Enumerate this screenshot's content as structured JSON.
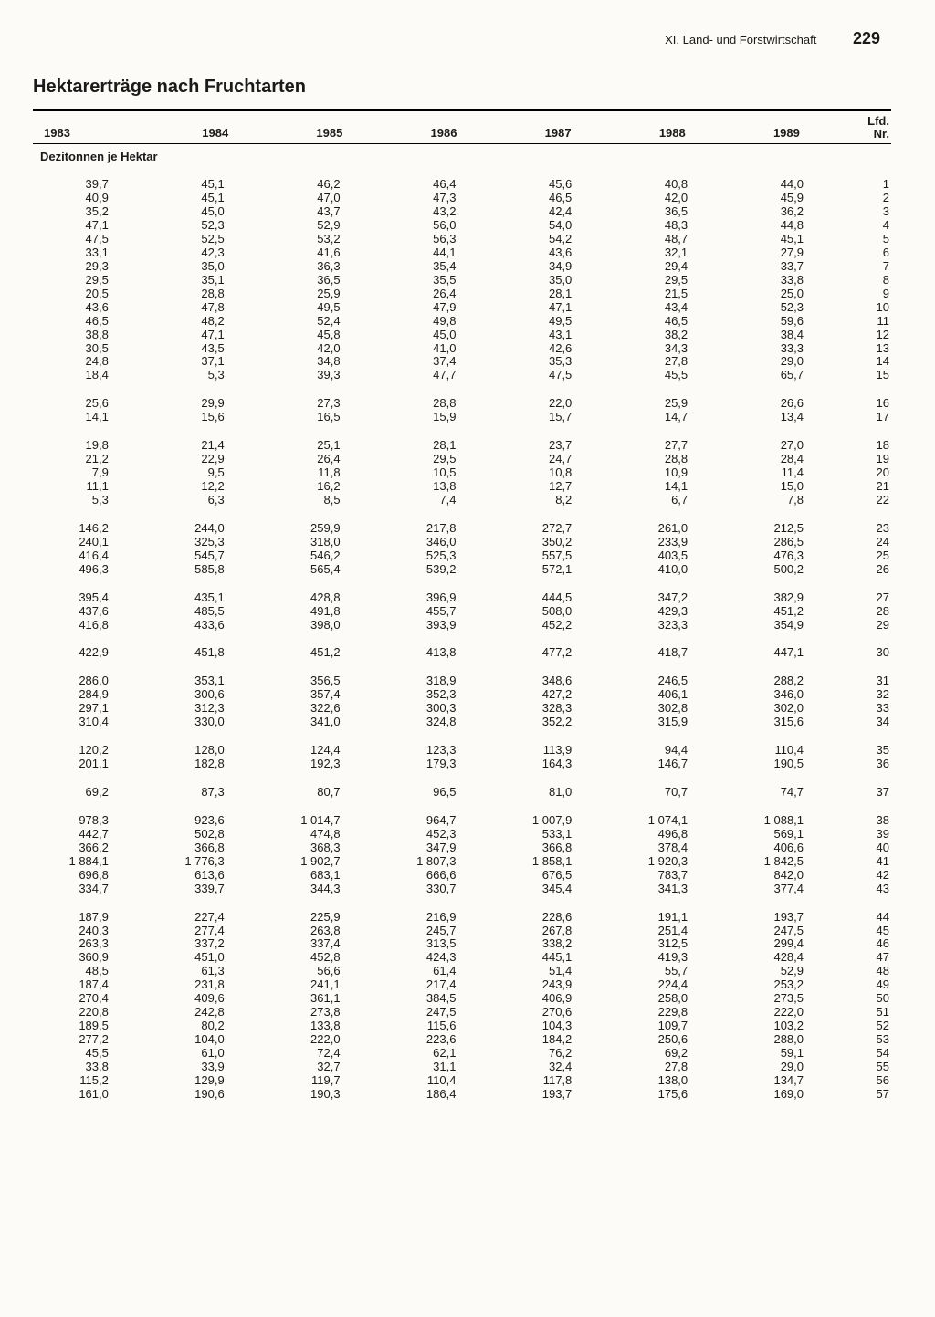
{
  "running_head_section": "XI. Land- und Forstwirtschaft",
  "page_number": "229",
  "title": "Hektarerträge nach Fruchtarten",
  "year_headers": [
    "1983",
    "1984",
    "1985",
    "1986",
    "1987",
    "1988",
    "1989"
  ],
  "lfd_header_top": "Lfd.",
  "lfd_header_bot": "Nr.",
  "subhead": "Dezitonnen je Hektar",
  "blocks": [
    {
      "rows": [
        {
          "c": [
            "39,7",
            "45,1",
            "46,2",
            "46,4",
            "45,6",
            "40,8",
            "44,0"
          ],
          "n": "1"
        },
        {
          "c": [
            "40,9",
            "45,1",
            "47,0",
            "47,3",
            "46,5",
            "42,0",
            "45,9"
          ],
          "n": "2"
        },
        {
          "c": [
            "35,2",
            "45,0",
            "43,7",
            "43,2",
            "42,4",
            "36,5",
            "36,2"
          ],
          "n": "3"
        },
        {
          "c": [
            "47,1",
            "52,3",
            "52,9",
            "56,0",
            "54,0",
            "48,3",
            "44,8"
          ],
          "n": "4"
        },
        {
          "c": [
            "47,5",
            "52,5",
            "53,2",
            "56,3",
            "54,2",
            "48,7",
            "45,1"
          ],
          "n": "5"
        },
        {
          "c": [
            "33,1",
            "42,3",
            "41,6",
            "44,1",
            "43,6",
            "32,1",
            "27,9"
          ],
          "n": "6"
        },
        {
          "c": [
            "29,3",
            "35,0",
            "36,3",
            "35,4",
            "34,9",
            "29,4",
            "33,7"
          ],
          "n": "7"
        },
        {
          "c": [
            "29,5",
            "35,1",
            "36,5",
            "35,5",
            "35,0",
            "29,5",
            "33,8"
          ],
          "n": "8"
        },
        {
          "c": [
            "20,5",
            "28,8",
            "25,9",
            "26,4",
            "28,1",
            "21,5",
            "25,0"
          ],
          "n": "9"
        },
        {
          "c": [
            "43,6",
            "47,8",
            "49,5",
            "47,9",
            "47,1",
            "43,4",
            "52,3"
          ],
          "n": "10"
        },
        {
          "c": [
            "46,5",
            "48,2",
            "52,4",
            "49,8",
            "49,5",
            "46,5",
            "59,6"
          ],
          "n": "11"
        },
        {
          "c": [
            "38,8",
            "47,1",
            "45,8",
            "45,0",
            "43,1",
            "38,2",
            "38,4"
          ],
          "n": "12"
        },
        {
          "c": [
            "30,5",
            "43,5",
            "42,0",
            "41,0",
            "42,6",
            "34,3",
            "33,3"
          ],
          "n": "13"
        },
        {
          "c": [
            "24,8",
            "37,1",
            "34,8",
            "37,4",
            "35,3",
            "27,8",
            "29,0"
          ],
          "n": "14"
        },
        {
          "c": [
            "18,4",
            "5,3",
            "39,3",
            "47,7",
            "47,5",
            "45,5",
            "65,7"
          ],
          "n": "15"
        }
      ]
    },
    {
      "rows": [
        {
          "c": [
            "25,6",
            "29,9",
            "27,3",
            "28,8",
            "22,0",
            "25,9",
            "26,6"
          ],
          "n": "16"
        },
        {
          "c": [
            "14,1",
            "15,6",
            "16,5",
            "15,9",
            "15,7",
            "14,7",
            "13,4"
          ],
          "n": "17"
        }
      ]
    },
    {
      "rows": [
        {
          "c": [
            "19,8",
            "21,4",
            "25,1",
            "28,1",
            "23,7",
            "27,7",
            "27,0"
          ],
          "n": "18"
        },
        {
          "c": [
            "21,2",
            "22,9",
            "26,4",
            "29,5",
            "24,7",
            "28,8",
            "28,4"
          ],
          "n": "19"
        },
        {
          "c": [
            "7,9",
            "9,5",
            "11,8",
            "10,5",
            "10,8",
            "10,9",
            "11,4"
          ],
          "n": "20"
        },
        {
          "c": [
            "11,1",
            "12,2",
            "16,2",
            "13,8",
            "12,7",
            "14,1",
            "15,0"
          ],
          "n": "21"
        },
        {
          "c": [
            "5,3",
            "6,3",
            "8,5",
            "7,4",
            "8,2",
            "6,7",
            "7,8"
          ],
          "n": "22"
        }
      ]
    },
    {
      "rows": [
        {
          "c": [
            "146,2",
            "244,0",
            "259,9",
            "217,8",
            "272,7",
            "261,0",
            "212,5"
          ],
          "n": "23"
        },
        {
          "c": [
            "240,1",
            "325,3",
            "318,0",
            "346,0",
            "350,2",
            "233,9",
            "286,5"
          ],
          "n": "24"
        },
        {
          "c": [
            "416,4",
            "545,7",
            "546,2",
            "525,3",
            "557,5",
            "403,5",
            "476,3"
          ],
          "n": "25"
        },
        {
          "c": [
            "496,3",
            "585,8",
            "565,4",
            "539,2",
            "572,1",
            "410,0",
            "500,2"
          ],
          "n": "26"
        }
      ]
    },
    {
      "rows": [
        {
          "c": [
            "395,4",
            "435,1",
            "428,8",
            "396,9",
            "444,5",
            "347,2",
            "382,9"
          ],
          "n": "27"
        },
        {
          "c": [
            "437,6",
            "485,5",
            "491,8",
            "455,7",
            "508,0",
            "429,3",
            "451,2"
          ],
          "n": "28"
        },
        {
          "c": [
            "416,8",
            "433,6",
            "398,0",
            "393,9",
            "452,2",
            "323,3",
            "354,9"
          ],
          "n": "29"
        }
      ]
    },
    {
      "rows": [
        {
          "c": [
            "422,9",
            "451,8",
            "451,2",
            "413,8",
            "477,2",
            "418,7",
            "447,1"
          ],
          "n": "30"
        }
      ]
    },
    {
      "rows": [
        {
          "c": [
            "286,0",
            "353,1",
            "356,5",
            "318,9",
            "348,6",
            "246,5",
            "288,2"
          ],
          "n": "31"
        },
        {
          "c": [
            "284,9",
            "300,6",
            "357,4",
            "352,3",
            "427,2",
            "406,1",
            "346,0"
          ],
          "n": "32"
        },
        {
          "c": [
            "297,1",
            "312,3",
            "322,6",
            "300,3",
            "328,3",
            "302,8",
            "302,0"
          ],
          "n": "33"
        },
        {
          "c": [
            "310,4",
            "330,0",
            "341,0",
            "324,8",
            "352,2",
            "315,9",
            "315,6"
          ],
          "n": "34"
        }
      ]
    },
    {
      "rows": [
        {
          "c": [
            "120,2",
            "128,0",
            "124,4",
            "123,3",
            "113,9",
            "94,4",
            "110,4"
          ],
          "n": "35"
        },
        {
          "c": [
            "201,1",
            "182,8",
            "192,3",
            "179,3",
            "164,3",
            "146,7",
            "190,5"
          ],
          "n": "36"
        }
      ]
    },
    {
      "rows": [
        {
          "c": [
            "69,2",
            "87,3",
            "80,7",
            "96,5",
            "81,0",
            "70,7",
            "74,7"
          ],
          "n": "37"
        }
      ]
    },
    {
      "rows": [
        {
          "c": [
            "978,3",
            "923,6",
            "1 014,7",
            "964,7",
            "1 007,9",
            "1 074,1",
            "1 088,1"
          ],
          "n": "38"
        },
        {
          "c": [
            "442,7",
            "502,8",
            "474,8",
            "452,3",
            "533,1",
            "496,8",
            "569,1"
          ],
          "n": "39"
        },
        {
          "c": [
            "366,2",
            "366,8",
            "368,3",
            "347,9",
            "366,8",
            "378,4",
            "406,6"
          ],
          "n": "40"
        },
        {
          "c": [
            "1 884,1",
            "1 776,3",
            "1 902,7",
            "1 807,3",
            "1 858,1",
            "1 920,3",
            "1 842,5"
          ],
          "n": "41"
        },
        {
          "c": [
            "696,8",
            "613,6",
            "683,1",
            "666,6",
            "676,5",
            "783,7",
            "842,0"
          ],
          "n": "42"
        },
        {
          "c": [
            "334,7",
            "339,7",
            "344,3",
            "330,7",
            "345,4",
            "341,3",
            "377,4"
          ],
          "n": "43"
        }
      ]
    },
    {
      "rows": [
        {
          "c": [
            "187,9",
            "227,4",
            "225,9",
            "216,9",
            "228,6",
            "191,1",
            "193,7"
          ],
          "n": "44"
        },
        {
          "c": [
            "240,3",
            "277,4",
            "263,8",
            "245,7",
            "267,8",
            "251,4",
            "247,5"
          ],
          "n": "45"
        },
        {
          "c": [
            "263,3",
            "337,2",
            "337,4",
            "313,5",
            "338,2",
            "312,5",
            "299,4"
          ],
          "n": "46"
        },
        {
          "c": [
            "360,9",
            "451,0",
            "452,8",
            "424,3",
            "445,1",
            "419,3",
            "428,4"
          ],
          "n": "47"
        },
        {
          "c": [
            "48,5",
            "61,3",
            "56,6",
            "61,4",
            "51,4",
            "55,7",
            "52,9"
          ],
          "n": "48"
        },
        {
          "c": [
            "187,4",
            "231,8",
            "241,1",
            "217,4",
            "243,9",
            "224,4",
            "253,2"
          ],
          "n": "49"
        },
        {
          "c": [
            "270,4",
            "409,6",
            "361,1",
            "384,5",
            "406,9",
            "258,0",
            "273,5"
          ],
          "n": "50"
        },
        {
          "c": [
            "220,8",
            "242,8",
            "273,8",
            "247,5",
            "270,6",
            "229,8",
            "222,0"
          ],
          "n": "51"
        },
        {
          "c": [
            "189,5",
            "80,2",
            "133,8",
            "115,6",
            "104,3",
            "109,7",
            "103,2"
          ],
          "n": "52"
        },
        {
          "c": [
            "277,2",
            "104,0",
            "222,0",
            "223,6",
            "184,2",
            "250,6",
            "288,0"
          ],
          "n": "53"
        },
        {
          "c": [
            "45,5",
            "61,0",
            "72,4",
            "62,1",
            "76,2",
            "69,2",
            "59,1"
          ],
          "n": "54"
        },
        {
          "c": [
            "33,8",
            "33,9",
            "32,7",
            "31,1",
            "32,4",
            "27,8",
            "29,0"
          ],
          "n": "55"
        },
        {
          "c": [
            "115,2",
            "129,9",
            "119,7",
            "110,4",
            "117,8",
            "138,0",
            "134,7"
          ],
          "n": "56"
        },
        {
          "c": [
            "161,0",
            "190,6",
            "190,3",
            "186,4",
            "193,7",
            "175,6",
            "169,0"
          ],
          "n": "57"
        }
      ]
    }
  ]
}
